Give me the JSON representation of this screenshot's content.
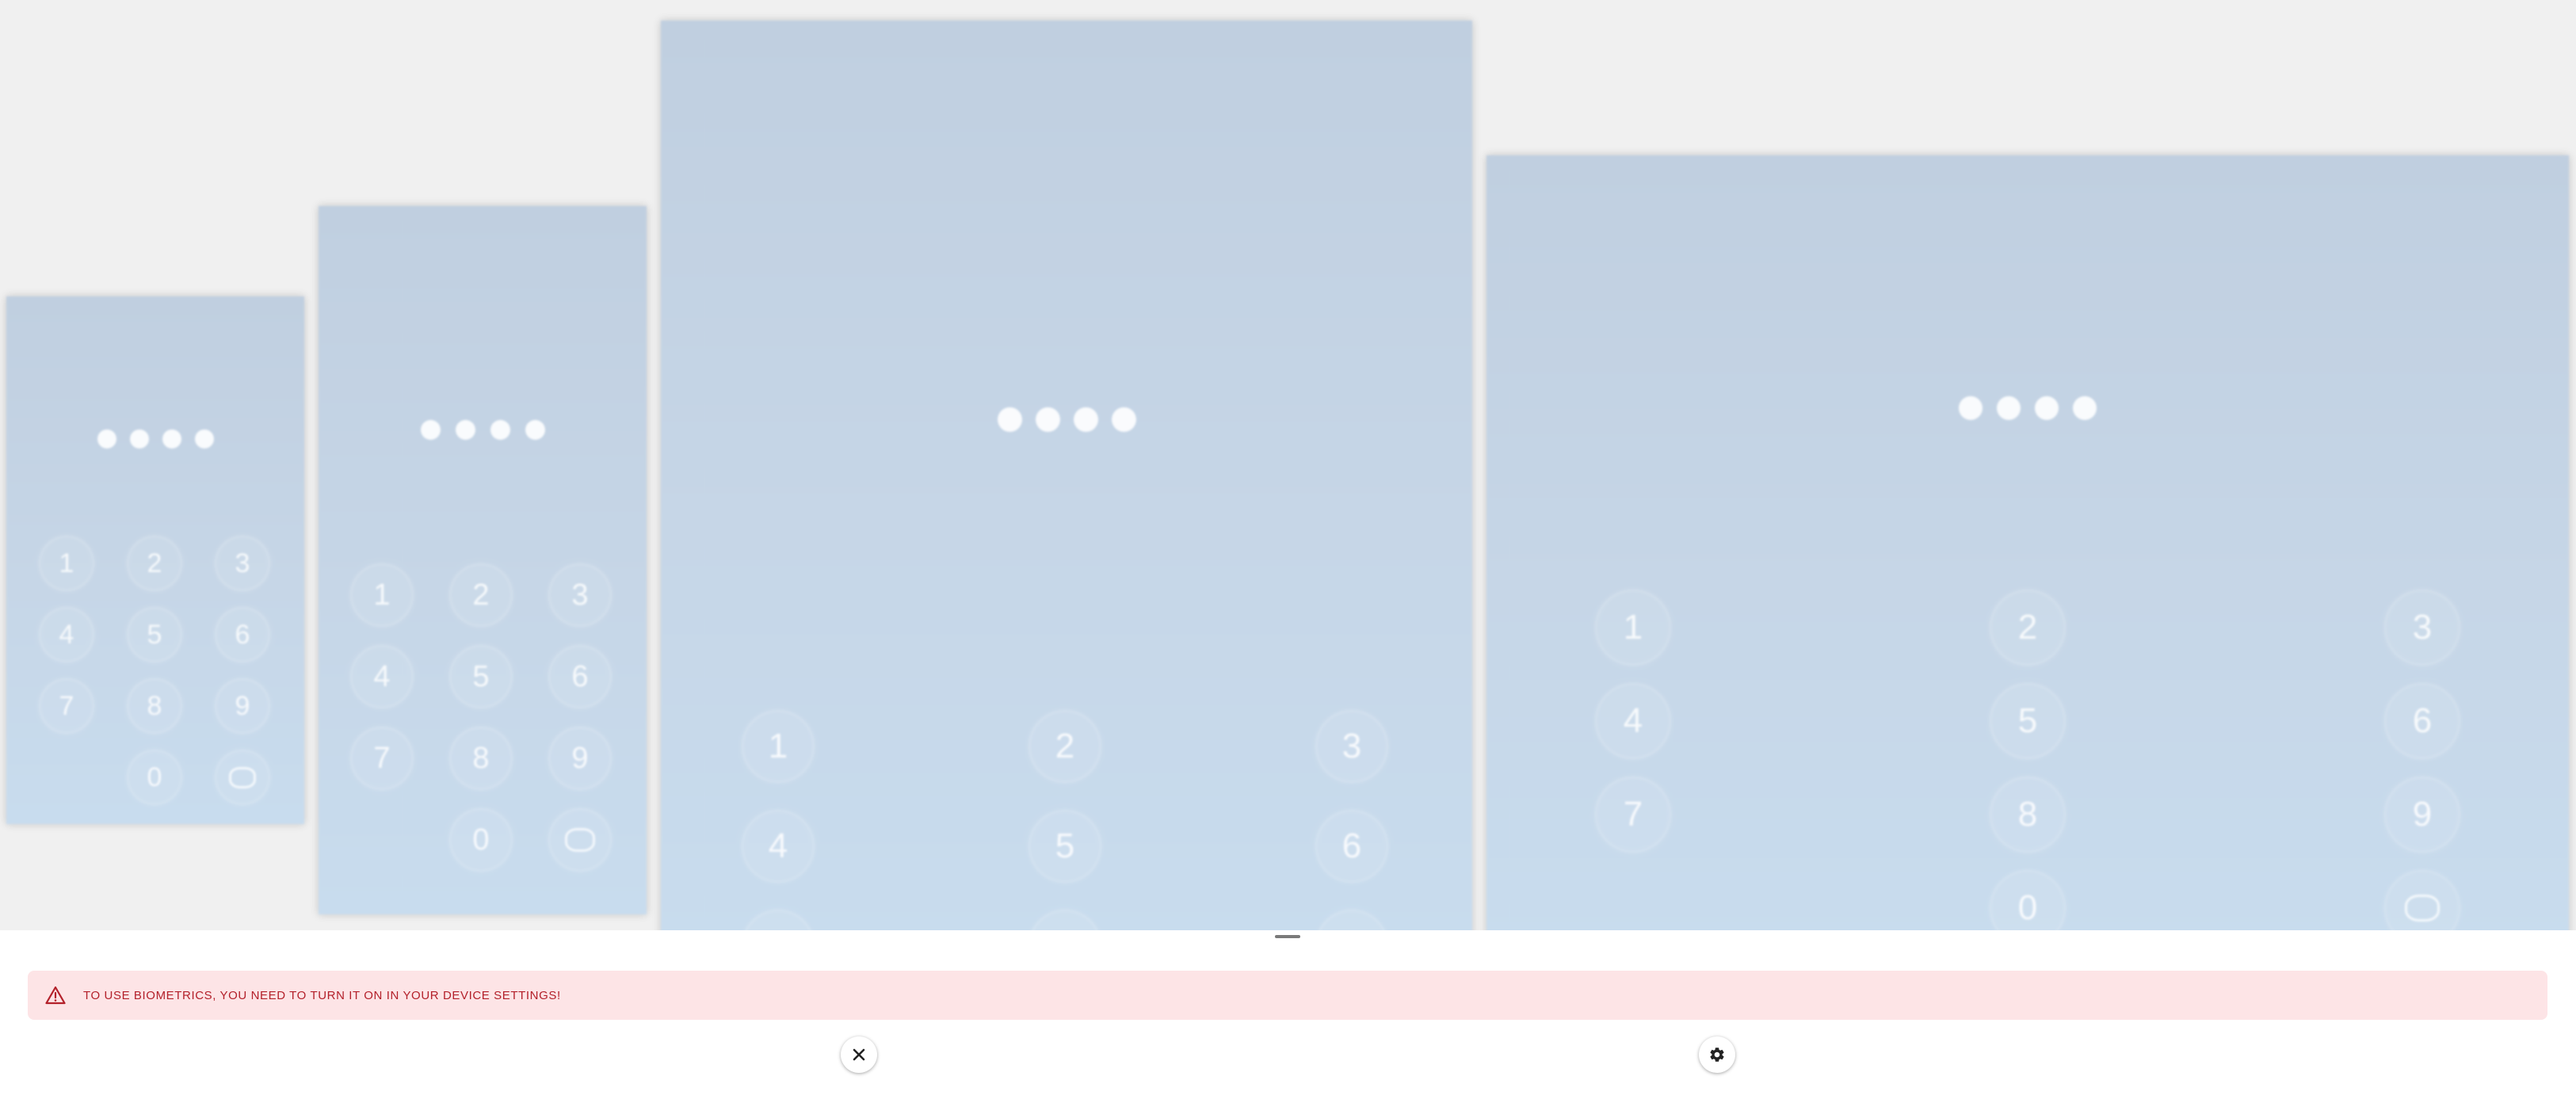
{
  "pin_dot_count": 4,
  "keypad": {
    "keys": [
      "1",
      "2",
      "3",
      "4",
      "5",
      "6",
      "7",
      "8",
      "9",
      "0"
    ],
    "biometric_icon": "fingerprint-icon"
  },
  "alert": {
    "icon": "warning-triangle-icon",
    "message": "TO USE BIOMETRICS, YOU NEED TO TURN IT ON IN YOUR DEVICE SETTINGS!",
    "background_color": "#fde4e6",
    "text_color": "#b3202a"
  },
  "actions": {
    "close_icon": "close-icon",
    "settings_icon": "gear-icon"
  }
}
